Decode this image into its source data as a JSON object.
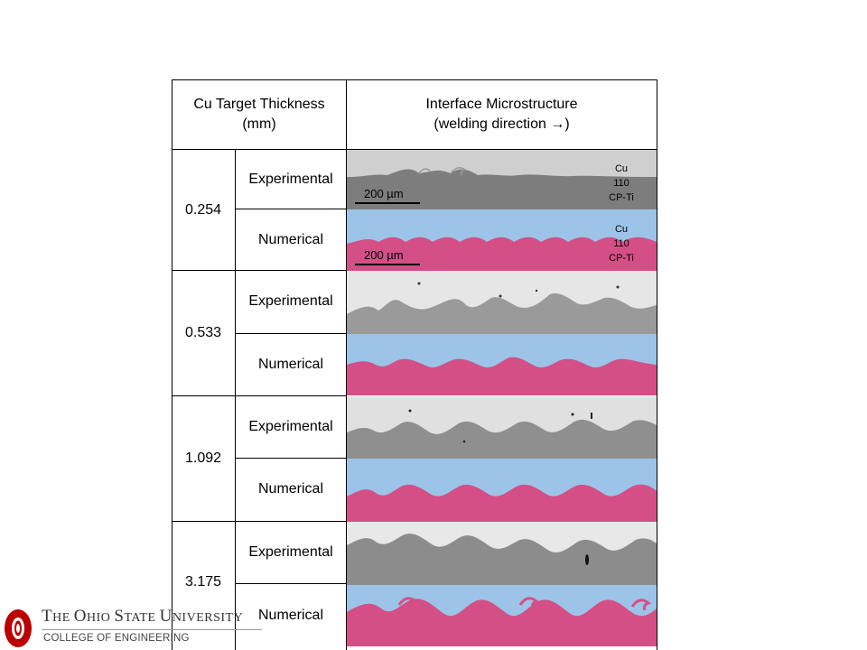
{
  "table": {
    "header": {
      "thickness": "Cu Target Thickness\n(mm)",
      "microstructure": "Interface Microstructure\n(welding direction →)"
    },
    "rows": [
      {
        "thickness": "0.254",
        "experimental": "Experimental",
        "numerical": "Numerical"
      },
      {
        "thickness": "0.533",
        "experimental": "Experimental",
        "numerical": "Numerical"
      },
      {
        "thickness": "1.092",
        "experimental": "Experimental",
        "numerical": "Numerical"
      },
      {
        "thickness": "3.175",
        "experimental": "Experimental",
        "numerical": "Numerical"
      }
    ]
  },
  "annotations": {
    "scale_bar": "200 µm",
    "materials": [
      "Cu",
      "110",
      "CP-Ti"
    ]
  },
  "footer": {
    "university_a": "T",
    "university_b": "HE ",
    "university_c": "O",
    "university_d": "HIO ",
    "university_e": "S",
    "university_f": "TATE ",
    "university_g": "U",
    "university_h": "NIVERSITY",
    "college": "COLLEGE OF ENGINEERING"
  },
  "colors": {
    "copper_sim": "#9cc4e8",
    "titanium_sim": "#d44f86",
    "copper_exp": "#cfcfcf",
    "titanium_exp": "#7d7d7d",
    "osu_scarlet": "#bb0000"
  }
}
